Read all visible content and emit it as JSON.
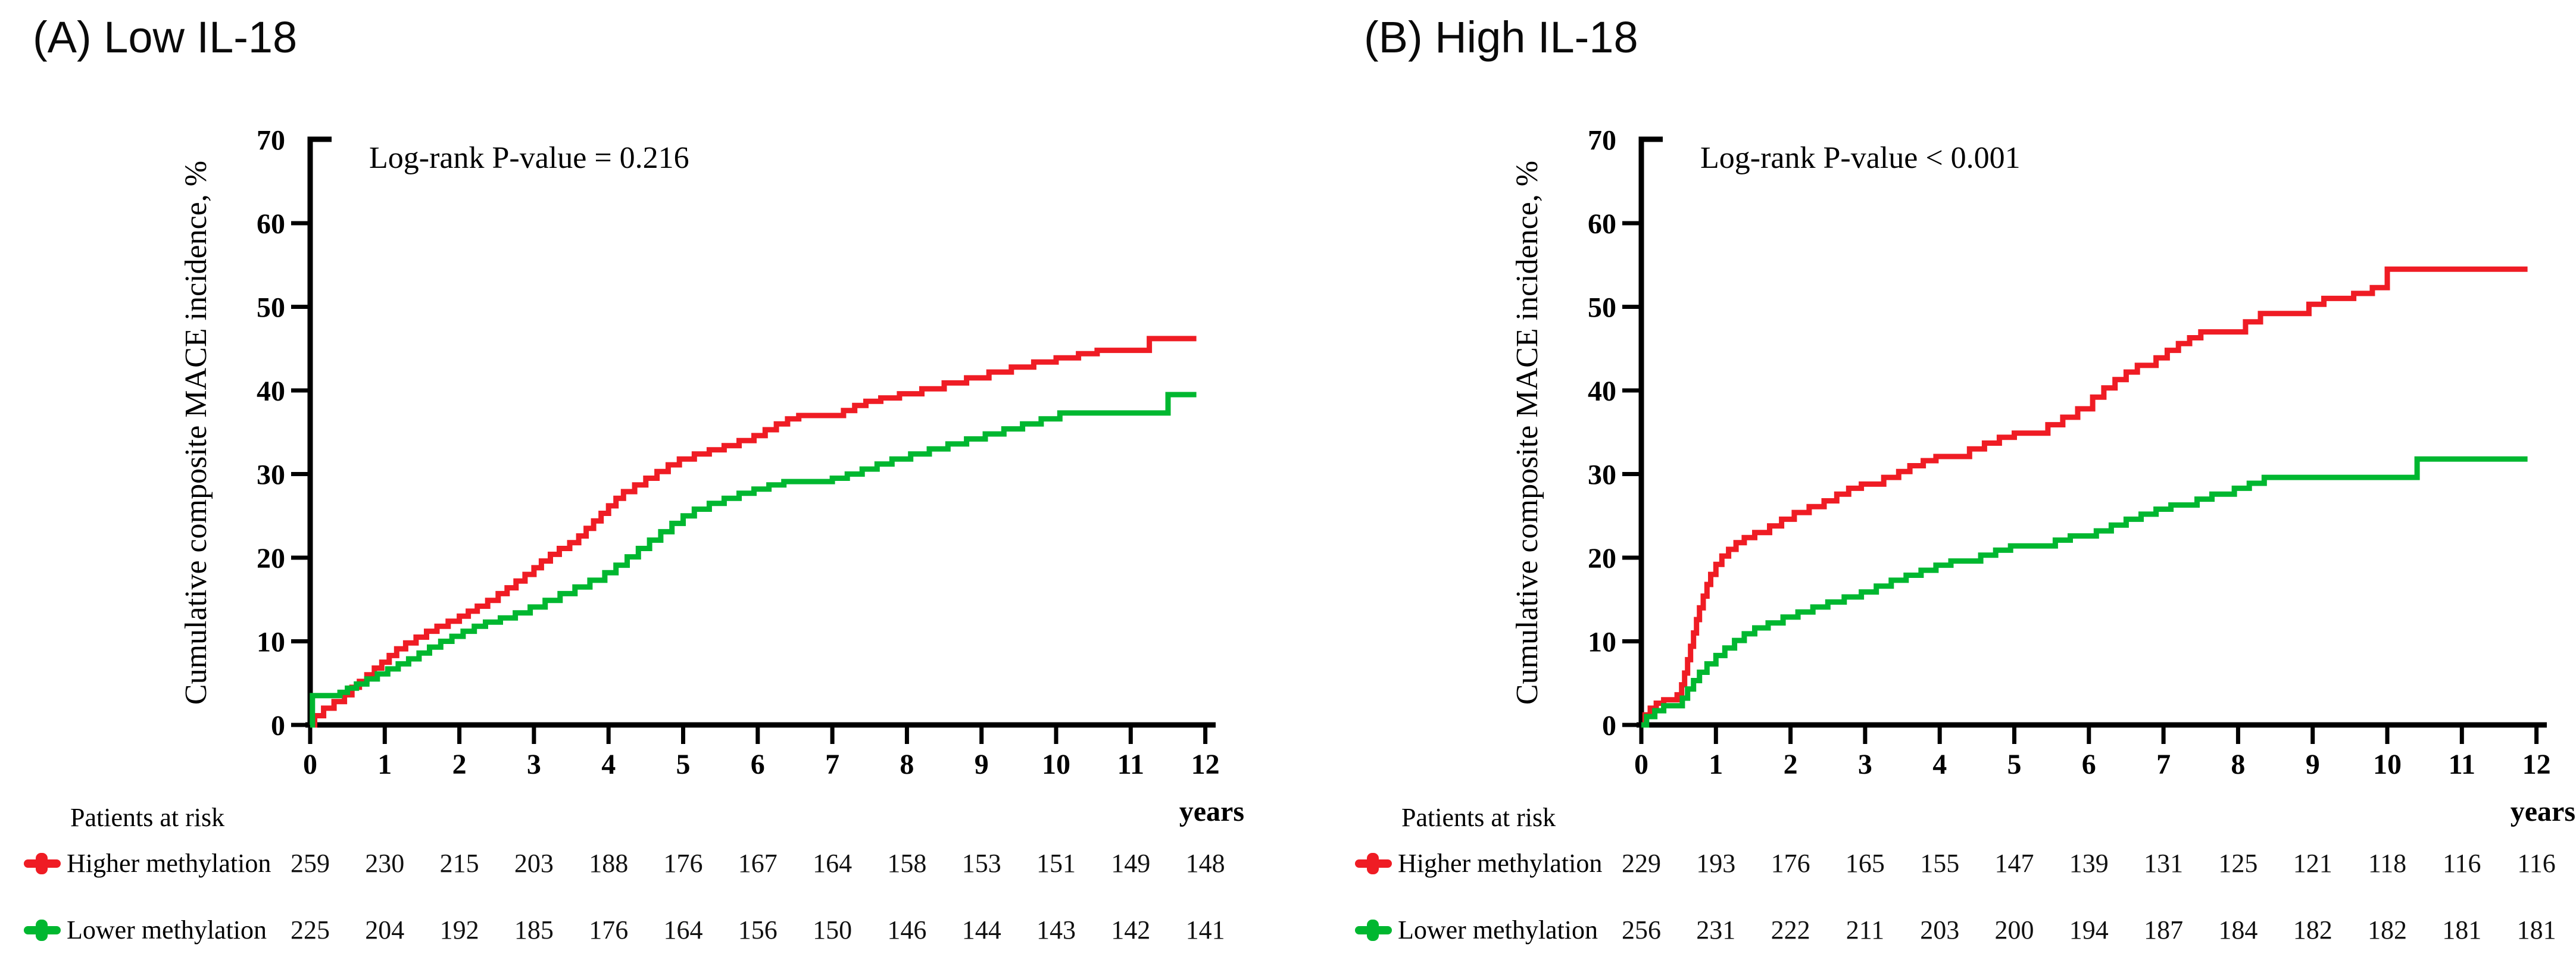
{
  "figure": {
    "accent_colors": {
      "higher_methylation": "#ef1c24",
      "lower_methylation": "#00b730",
      "axis": "#000000"
    }
  },
  "chart_data": [
    {
      "id": "A",
      "type": "line",
      "subtype": "kaplan-meier-step",
      "title": "(A) Low IL-18",
      "annotation": "Log-rank P-value = 0.216",
      "xlabel": "years",
      "ylabel": "Cumulative composite MACE incidence, %",
      "xlim": [
        0,
        12
      ],
      "ylim": [
        0,
        70
      ],
      "xticks": [
        0,
        1,
        2,
        3,
        4,
        5,
        6,
        7,
        8,
        9,
        10,
        11,
        12
      ],
      "yticks": [
        0,
        10,
        20,
        30,
        40,
        50,
        60,
        70
      ],
      "grid": false,
      "legend_position": "risk-table-left",
      "series": [
        {
          "name": "Higher methylation",
          "color": "#ef1c24",
          "points": [
            [
              0,
              0
            ],
            [
              0.06,
              1.1
            ],
            [
              0.18,
              2
            ],
            [
              0.32,
              2.8
            ],
            [
              0.46,
              3.6
            ],
            [
              0.56,
              4.5
            ],
            [
              0.66,
              5.2
            ],
            [
              0.76,
              6
            ],
            [
              0.86,
              6.8
            ],
            [
              0.96,
              7.5
            ],
            [
              1.06,
              8.3
            ],
            [
              1.16,
              9.1
            ],
            [
              1.28,
              9.8
            ],
            [
              1.42,
              10.5
            ],
            [
              1.56,
              11.2
            ],
            [
              1.7,
              11.8
            ],
            [
              1.85,
              12.4
            ],
            [
              2,
              13
            ],
            [
              2.12,
              13.6
            ],
            [
              2.24,
              14.2
            ],
            [
              2.38,
              14.9
            ],
            [
              2.52,
              15.7
            ],
            [
              2.64,
              16.4
            ],
            [
              2.76,
              17.2
            ],
            [
              2.88,
              18
            ],
            [
              3,
              18.8
            ],
            [
              3.1,
              19.6
            ],
            [
              3.22,
              20.4
            ],
            [
              3.34,
              21.1
            ],
            [
              3.48,
              21.8
            ],
            [
              3.6,
              22.6
            ],
            [
              3.7,
              23.5
            ],
            [
              3.8,
              24.4
            ],
            [
              3.9,
              25.3
            ],
            [
              4,
              26.2
            ],
            [
              4.1,
              27.1
            ],
            [
              4.2,
              27.9
            ],
            [
              4.35,
              28.7
            ],
            [
              4.5,
              29.5
            ],
            [
              4.65,
              30.3
            ],
            [
              4.8,
              31.1
            ],
            [
              4.95,
              31.8
            ],
            [
              5.15,
              32.4
            ],
            [
              5.35,
              32.9
            ],
            [
              5.55,
              33.4
            ],
            [
              5.75,
              34
            ],
            [
              5.95,
              34.6
            ],
            [
              6.1,
              35.3
            ],
            [
              6.25,
              36
            ],
            [
              6.4,
              36.6
            ],
            [
              6.55,
              37
            ],
            [
              7.15,
              37.6
            ],
            [
              7.3,
              38.2
            ],
            [
              7.45,
              38.7
            ],
            [
              7.65,
              39.1
            ],
            [
              7.9,
              39.6
            ],
            [
              8.2,
              40.2
            ],
            [
              8.5,
              40.9
            ],
            [
              8.8,
              41.5
            ],
            [
              9.1,
              42.2
            ],
            [
              9.4,
              42.8
            ],
            [
              9.7,
              43.4
            ],
            [
              10,
              43.9
            ],
            [
              10.3,
              44.4
            ],
            [
              10.55,
              44.8
            ],
            [
              11.25,
              46.2
            ],
            [
              11.88,
              46.2
            ]
          ]
        },
        {
          "name": "Lower methylation",
          "color": "#00b730",
          "points": [
            [
              0,
              0
            ],
            [
              0.03,
              3.5
            ],
            [
              0.4,
              3.9
            ],
            [
              0.5,
              4.4
            ],
            [
              0.62,
              4.9
            ],
            [
              0.76,
              5.5
            ],
            [
              0.9,
              6.1
            ],
            [
              1.04,
              6.7
            ],
            [
              1.18,
              7.3
            ],
            [
              1.32,
              7.9
            ],
            [
              1.46,
              8.6
            ],
            [
              1.6,
              9.3
            ],
            [
              1.75,
              10
            ],
            [
              1.9,
              10.6
            ],
            [
              2.05,
              11.2
            ],
            [
              2.2,
              11.8
            ],
            [
              2.35,
              12.3
            ],
            [
              2.55,
              12.8
            ],
            [
              2.75,
              13.4
            ],
            [
              2.95,
              14.1
            ],
            [
              3.15,
              14.9
            ],
            [
              3.35,
              15.7
            ],
            [
              3.55,
              16.5
            ],
            [
              3.75,
              17.3
            ],
            [
              3.95,
              18.2
            ],
            [
              4.1,
              19.1
            ],
            [
              4.25,
              20.1
            ],
            [
              4.4,
              21.1
            ],
            [
              4.55,
              22.1
            ],
            [
              4.7,
              23.1
            ],
            [
              4.85,
              24.1
            ],
            [
              5,
              25
            ],
            [
              5.15,
              25.8
            ],
            [
              5.35,
              26.5
            ],
            [
              5.55,
              27.1
            ],
            [
              5.75,
              27.7
            ],
            [
              5.95,
              28.2
            ],
            [
              6.15,
              28.7
            ],
            [
              6.35,
              29.1
            ],
            [
              7,
              29.5
            ],
            [
              7.2,
              30
            ],
            [
              7.4,
              30.6
            ],
            [
              7.6,
              31.2
            ],
            [
              7.8,
              31.8
            ],
            [
              8.05,
              32.4
            ],
            [
              8.3,
              33
            ],
            [
              8.55,
              33.6
            ],
            [
              8.8,
              34.2
            ],
            [
              9.05,
              34.8
            ],
            [
              9.3,
              35.4
            ],
            [
              9.55,
              36
            ],
            [
              9.8,
              36.6
            ],
            [
              10.05,
              37.3
            ],
            [
              11.5,
              39.5
            ],
            [
              11.88,
              39.5
            ]
          ]
        }
      ],
      "risk_table": {
        "header": "Patients at risk",
        "rows": [
          {
            "label": "Higher methylation",
            "color": "#ef1c24",
            "counts": [
              259,
              230,
              215,
              203,
              188,
              176,
              167,
              164,
              158,
              153,
              151,
              149,
              148
            ]
          },
          {
            "label": "Lower methylation",
            "color": "#00b730",
            "counts": [
              225,
              204,
              192,
              185,
              176,
              164,
              156,
              150,
              146,
              144,
              143,
              142,
              141
            ]
          }
        ]
      }
    },
    {
      "id": "B",
      "type": "line",
      "subtype": "kaplan-meier-step",
      "title": "(B) High IL-18",
      "annotation": "Log-rank P-value < 0.001",
      "xlabel": "years",
      "ylabel": "Cumulative composite MACE incidence, %",
      "xlim": [
        0,
        12
      ],
      "ylim": [
        0,
        70
      ],
      "xticks": [
        0,
        1,
        2,
        3,
        4,
        5,
        6,
        7,
        8,
        9,
        10,
        11,
        12
      ],
      "yticks": [
        0,
        10,
        20,
        30,
        40,
        50,
        60,
        70
      ],
      "grid": false,
      "legend_position": "risk-table-left",
      "series": [
        {
          "name": "Higher methylation",
          "color": "#ef1c24",
          "points": [
            [
              0,
              0
            ],
            [
              0.05,
              1.2
            ],
            [
              0.12,
              2
            ],
            [
              0.2,
              2.6
            ],
            [
              0.3,
              3
            ],
            [
              0.48,
              3.6
            ],
            [
              0.54,
              4.8
            ],
            [
              0.58,
              6.2
            ],
            [
              0.62,
              7.8
            ],
            [
              0.66,
              9.4
            ],
            [
              0.7,
              11
            ],
            [
              0.74,
              12.6
            ],
            [
              0.78,
              14
            ],
            [
              0.83,
              15.4
            ],
            [
              0.88,
              16.8
            ],
            [
              0.93,
              18
            ],
            [
              1,
              19.2
            ],
            [
              1.08,
              20.2
            ],
            [
              1.17,
              21
            ],
            [
              1.27,
              21.8
            ],
            [
              1.38,
              22.4
            ],
            [
              1.52,
              23
            ],
            [
              1.72,
              23.8
            ],
            [
              1.88,
              24.6
            ],
            [
              2.05,
              25.4
            ],
            [
              2.25,
              26.1
            ],
            [
              2.45,
              26.8
            ],
            [
              2.62,
              27.6
            ],
            [
              2.78,
              28.3
            ],
            [
              2.95,
              28.8
            ],
            [
              3.25,
              29.6
            ],
            [
              3.45,
              30.3
            ],
            [
              3.6,
              31
            ],
            [
              3.78,
              31.6
            ],
            [
              3.95,
              32.1
            ],
            [
              4.4,
              33
            ],
            [
              4.6,
              33.7
            ],
            [
              4.8,
              34.4
            ],
            [
              5,
              34.9
            ],
            [
              5.45,
              35.9
            ],
            [
              5.65,
              36.8
            ],
            [
              5.85,
              37.8
            ],
            [
              6.05,
              39.2
            ],
            [
              6.2,
              40.3
            ],
            [
              6.35,
              41.3
            ],
            [
              6.5,
              42.2
            ],
            [
              6.65,
              43
            ],
            [
              6.9,
              43.9
            ],
            [
              7.05,
              44.8
            ],
            [
              7.2,
              45.6
            ],
            [
              7.35,
              46.3
            ],
            [
              7.5,
              47
            ],
            [
              8.1,
              48.2
            ],
            [
              8.3,
              49.2
            ],
            [
              8.95,
              50.3
            ],
            [
              9.15,
              51
            ],
            [
              9.55,
              51.6
            ],
            [
              9.8,
              52.3
            ],
            [
              10,
              54.5
            ],
            [
              11.88,
              54.5
            ]
          ]
        },
        {
          "name": "Lower methylation",
          "color": "#00b730",
          "points": [
            [
              0,
              0
            ],
            [
              0.07,
              1
            ],
            [
              0.18,
              1.7
            ],
            [
              0.3,
              2.3
            ],
            [
              0.55,
              3.2
            ],
            [
              0.62,
              4.3
            ],
            [
              0.7,
              5.3
            ],
            [
              0.78,
              6.3
            ],
            [
              0.88,
              7.3
            ],
            [
              1,
              8.3
            ],
            [
              1.12,
              9.2
            ],
            [
              1.25,
              10.1
            ],
            [
              1.38,
              10.9
            ],
            [
              1.52,
              11.6
            ],
            [
              1.7,
              12.2
            ],
            [
              1.9,
              12.9
            ],
            [
              2.1,
              13.5
            ],
            [
              2.3,
              14.1
            ],
            [
              2.5,
              14.7
            ],
            [
              2.72,
              15.3
            ],
            [
              2.95,
              15.9
            ],
            [
              3.15,
              16.6
            ],
            [
              3.35,
              17.3
            ],
            [
              3.55,
              17.9
            ],
            [
              3.75,
              18.5
            ],
            [
              3.95,
              19.1
            ],
            [
              4.15,
              19.6
            ],
            [
              4.55,
              20.3
            ],
            [
              4.75,
              20.9
            ],
            [
              4.95,
              21.4
            ],
            [
              5.55,
              22.1
            ],
            [
              5.75,
              22.6
            ],
            [
              6.1,
              23.2
            ],
            [
              6.3,
              23.9
            ],
            [
              6.5,
              24.6
            ],
            [
              6.7,
              25.2
            ],
            [
              6.9,
              25.8
            ],
            [
              7.1,
              26.3
            ],
            [
              7.45,
              27
            ],
            [
              7.65,
              27.6
            ],
            [
              7.95,
              28.3
            ],
            [
              8.15,
              28.9
            ],
            [
              8.35,
              29.6
            ],
            [
              10.4,
              31.8
            ],
            [
              11.88,
              31.8
            ]
          ]
        }
      ],
      "risk_table": {
        "header": "Patients at risk",
        "rows": [
          {
            "label": "Higher methylation",
            "color": "#ef1c24",
            "counts": [
              229,
              193,
              176,
              165,
              155,
              147,
              139,
              131,
              125,
              121,
              118,
              116,
              116
            ]
          },
          {
            "label": "Lower methylation",
            "color": "#00b730",
            "counts": [
              256,
              231,
              222,
              211,
              203,
              200,
              194,
              187,
              184,
              182,
              182,
              181,
              181
            ]
          }
        ]
      }
    }
  ]
}
